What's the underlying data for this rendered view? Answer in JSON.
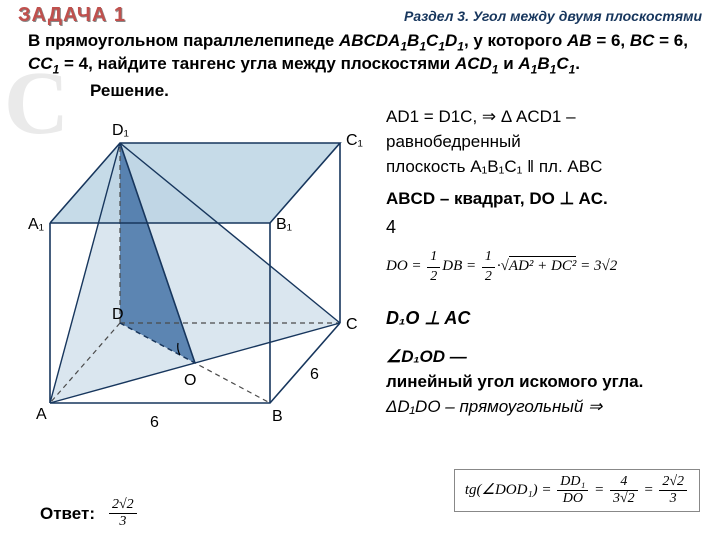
{
  "header": {
    "task": "ЗАДАЧА 1",
    "section": "Раздел 3. Угол между двумя плоскостями"
  },
  "problem": {
    "text_html": "В прямоугольном параллелепипеде <span class='ital'>ABCDA<span class='sub'>1</span>B<span class='sub'>1</span>C<span class='sub'>1</span>D<span class='sub'>1</span></span>, у которого <span class='ital'>AB</span> = 6, <span class='ital'>BC</span> = 6, <span class='ital'>CC<span class='sub'>1</span></span> = 4, найдите тангенс угла между плоскостями <span class='ital'>ACD<span class='sub'>1</span></span> и <span class='ital'>A<span class='sub'>1</span>B<span class='sub'>1</span>C<span class='sub'>1</span></span>."
  },
  "solution_label": "Решение.",
  "right": {
    "line1": "AD1 = D1C, ⇒ Δ ACD1 –",
    "line2": "равнобедренный",
    "line3": "плоскость A₁B₁C₁ ‖  пл. ABC",
    "line4": "ABCD – квадрат, DO ⊥ AC.",
    "four": "4",
    "do_formula": "DO = ½ DB = ½ · √(AD² + DC²) = 3√2",
    "d1o_perp": "D₁O ⊥  AC",
    "angle_lin": "∠D₁OD —",
    "angle_lin2": "линейный угол искомого угла.",
    "tri": "ΔD₁DO – прямоугольный ⇒"
  },
  "figure": {
    "labels": {
      "D1": "D₁",
      "C1": "C₁",
      "A1": "A₁",
      "B1": "B₁",
      "D": "D",
      "C": "C",
      "A": "A",
      "B": "B",
      "O": "O",
      "six_ab": "6",
      "six_bc": "6"
    },
    "colors": {
      "top_face_fill": "#c6dbe8",
      "tri_fill": "#4573a7",
      "edge_color": "#17365d",
      "dashed_color": "#4a4a4a"
    }
  },
  "answer": {
    "label": "Ответ:",
    "frac_num": "2√2",
    "frac_den": "3"
  },
  "bottom_formula": {
    "tg": "tg(∠DOD₁) =",
    "f1_num": "DD₁",
    "f1_den": "DO",
    "f2_num": "4",
    "f2_den": "3√2",
    "f3_num": "2√2",
    "f3_den": "3"
  },
  "watermark": "С"
}
